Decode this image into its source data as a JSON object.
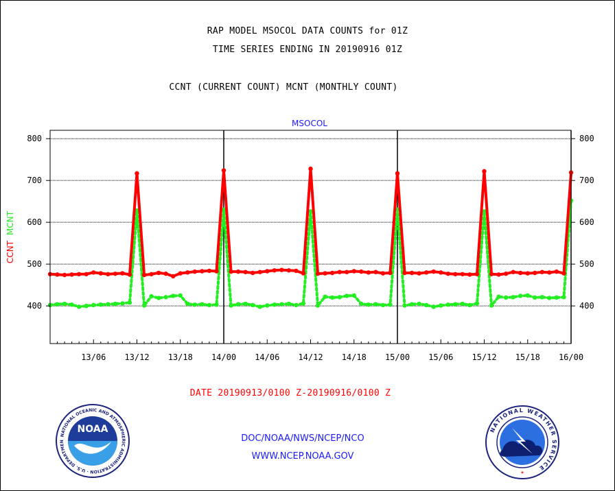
{
  "header": {
    "line1": "RAP MODEL MSOCOL DATA COUNTS for 01Z",
    "line2": "TIME SERIES ENDING IN 20190916 01Z",
    "line3": "CCNT (CURRENT COUNT) MCNT (MONTHLY COUNT)"
  },
  "footer": {
    "date_range": "DATE 20190913/0100 Z-20190916/0100 Z",
    "org": "DOC/NOAA/NWS/NCEP/NCO",
    "url": "WWW.NCEP.NOAA.GOV"
  },
  "logos": {
    "noaa_text": "NOAA",
    "noaa_ring": "NATIONAL OCEANIC AND ATMOSPHERIC ADMINISTRATION · U.S. DEPARTMENT OF COMMERCE ·",
    "nws_ring": "NATIONAL WEATHER SERVICE"
  },
  "colors": {
    "ccnt": "#ff0000",
    "mcnt": "#22ee22",
    "title": "#1a1aff",
    "axis": "#000000"
  },
  "chart_data": {
    "type": "line",
    "title": "MSOCOL",
    "ylabel_parts": [
      "CCNT",
      "MCNT"
    ],
    "ylim": [
      310,
      820
    ],
    "xlim": [
      0,
      72
    ],
    "yticks": [
      400,
      500,
      600,
      700,
      800
    ],
    "ytick_labels": [
      "400",
      "500",
      "600",
      "700",
      "800"
    ],
    "xticks": [
      6,
      12,
      18,
      24,
      30,
      36,
      42,
      48,
      54,
      60,
      66,
      72
    ],
    "xtick_labels": [
      "13/06",
      "13/12",
      "13/18",
      "14/00",
      "14/06",
      "14/12",
      "14/18",
      "15/00",
      "15/06",
      "15/12",
      "15/18",
      "16/00"
    ],
    "day_lines": [
      24,
      48,
      72
    ],
    "grid": true,
    "x": [
      0,
      1,
      2,
      3,
      4,
      5,
      6,
      7,
      8,
      9,
      10,
      11,
      12,
      13,
      14,
      15,
      16,
      17,
      18,
      19,
      20,
      21,
      22,
      23,
      24,
      25,
      26,
      27,
      28,
      29,
      30,
      31,
      32,
      33,
      34,
      35,
      36,
      37,
      38,
      39,
      40,
      41,
      42,
      43,
      44,
      45,
      46,
      47,
      48,
      49,
      50,
      51,
      52,
      53,
      54,
      55,
      56,
      57,
      58,
      59,
      60,
      61,
      62,
      63,
      64,
      65,
      66,
      67,
      68,
      69,
      70,
      71,
      72
    ],
    "series": [
      {
        "name": "CCNT",
        "values": [
          476,
          475,
          474,
          475,
          476,
          476,
          480,
          478,
          476,
          477,
          478,
          475,
          717,
          474,
          476,
          479,
          477,
          471,
          478,
          480,
          482,
          483,
          484,
          483,
          724,
          482,
          482,
          481,
          479,
          481,
          483,
          485,
          486,
          485,
          484,
          478,
          728,
          477,
          478,
          479,
          481,
          481,
          483,
          482,
          480,
          481,
          478,
          479,
          717,
          479,
          479,
          478,
          480,
          482,
          480,
          477,
          476,
          476,
          475,
          476,
          722,
          476,
          475,
          477,
          481,
          479,
          478,
          479,
          481,
          480,
          482,
          478,
          719
        ]
      },
      {
        "name": "MCNT",
        "values": [
          402,
          404,
          405,
          403,
          398,
          400,
          402,
          403,
          404,
          405,
          406,
          408,
          628,
          401,
          423,
          419,
          421,
          424,
          425,
          405,
          403,
          404,
          402,
          403,
          630,
          401,
          404,
          405,
          402,
          398,
          401,
          403,
          404,
          405,
          402,
          406,
          626,
          401,
          422,
          420,
          421,
          424,
          425,
          405,
          403,
          404,
          402,
          403,
          630,
          401,
          404,
          405,
          402,
          398,
          401,
          403,
          404,
          405,
          402,
          406,
          626,
          401,
          422,
          420,
          421,
          424,
          425,
          420,
          421,
          419,
          420,
          421,
          652
        ]
      }
    ]
  }
}
